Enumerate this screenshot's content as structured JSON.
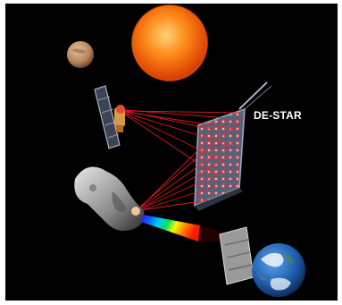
{
  "illustration": {
    "label": "DE-STAR"
  },
  "colors": {
    "background": "#000000",
    "sun": "#ff7a12",
    "sun_core": "#ffb347",
    "mars": "#c9976b",
    "laser": "#ff2020",
    "array_frame": "#7f8aa0",
    "earth_ocean": "#1f5fb0",
    "earth_cloud": "#f2f5f8"
  }
}
